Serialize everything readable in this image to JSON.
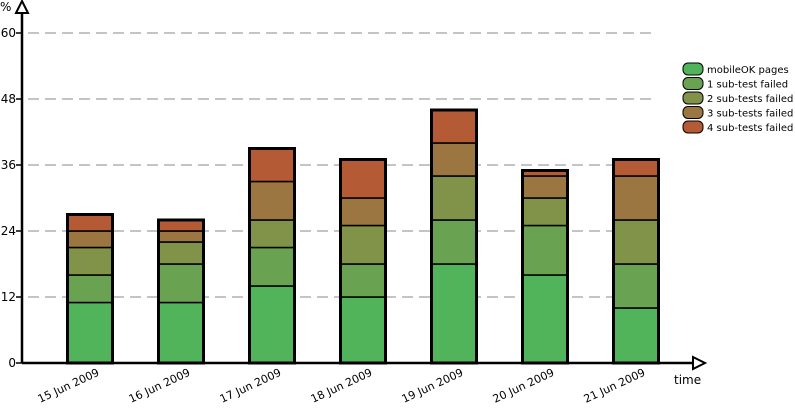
{
  "chart_data": {
    "type": "bar",
    "stacked": true,
    "title": "",
    "xlabel": "time",
    "ylabel": "%",
    "ylim": [
      0,
      63
    ],
    "yticks": [
      0,
      12,
      24,
      36,
      48,
      60
    ],
    "grid": "horizontal dashed",
    "legend_position": "top-right",
    "categories": [
      "15 Jun 2009",
      "16 Jun 2009",
      "17 Jun 2009",
      "18 Jun 2009",
      "19 Jun 2009",
      "20 Jun 2009",
      "21 Jun 2009"
    ],
    "series": [
      {
        "name": "mobileOK pages",
        "color": "#52b45a",
        "values": [
          11,
          11,
          14,
          12,
          18,
          16,
          10
        ]
      },
      {
        "name": "1 sub-test failed",
        "color": "#69a251",
        "values": [
          5,
          7,
          7,
          6,
          8,
          9,
          8
        ]
      },
      {
        "name": "2 sub-tests failed",
        "color": "#819249",
        "values": [
          5,
          4,
          5,
          7,
          8,
          5,
          8
        ]
      },
      {
        "name": "3 sub-tests failed",
        "color": "#9c7640",
        "values": [
          3,
          2,
          7,
          5,
          6,
          4,
          8
        ]
      },
      {
        "name": "4 sub-tests failed",
        "color": "#b45a34",
        "values": [
          3,
          2,
          6,
          7,
          6,
          1,
          3
        ]
      }
    ]
  }
}
